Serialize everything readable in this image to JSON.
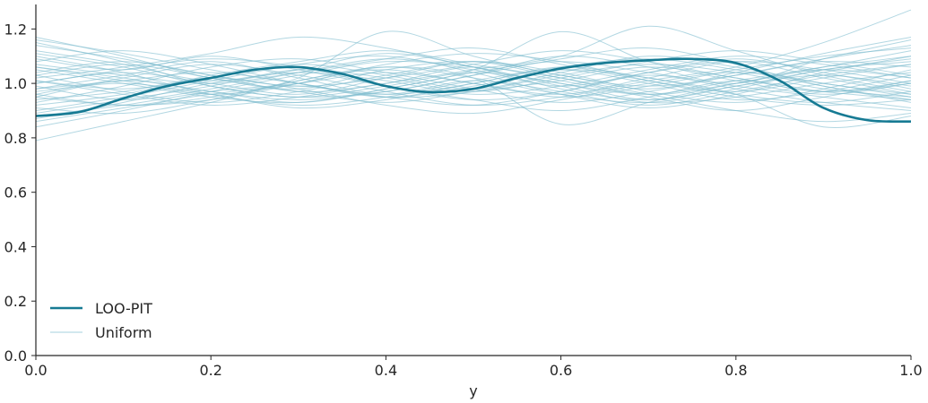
{
  "chart_data": {
    "type": "line",
    "title": "",
    "xlabel": "y",
    "ylabel": "",
    "xlim": [
      0.0,
      1.0
    ],
    "ylim": [
      0.0,
      1.29
    ],
    "xticks": [
      "0.0",
      "0.2",
      "0.4",
      "0.6",
      "0.8",
      "1.0"
    ],
    "yticks": [
      "0.0",
      "0.2",
      "0.4",
      "0.6",
      "0.8",
      "1.0",
      "1.2"
    ],
    "grid": false,
    "legend_position": "lower-left",
    "colors": {
      "loo_pit": "#167a93",
      "uniform": "#7fbccf",
      "axis": "#262626"
    },
    "series": [
      {
        "name": "LOO-PIT",
        "x": [
          0.0,
          0.05,
          0.1,
          0.15,
          0.2,
          0.25,
          0.3,
          0.35,
          0.4,
          0.45,
          0.5,
          0.55,
          0.6,
          0.65,
          0.7,
          0.75,
          0.8,
          0.85,
          0.9,
          0.95,
          1.0
        ],
        "values": [
          0.88,
          0.895,
          0.945,
          0.99,
          1.02,
          1.05,
          1.06,
          1.035,
          0.99,
          0.968,
          0.98,
          1.02,
          1.055,
          1.075,
          1.085,
          1.09,
          1.075,
          1.01,
          0.91,
          0.865,
          0.86
        ]
      },
      {
        "name": "Uniform",
        "x": [
          0.0,
          0.1,
          0.2,
          0.3,
          0.4,
          0.5,
          0.6,
          0.7,
          0.8,
          0.9,
          1.0
        ],
        "samples": [
          [
            1.17,
            1.1,
            1.02,
            0.98,
            1.05,
            1.08,
            1.02,
            0.96,
            1.0,
            1.06,
            1.12
          ],
          [
            1.15,
            1.08,
            0.99,
            0.95,
            0.97,
            1.03,
            1.1,
            1.06,
            1.0,
            1.09,
            1.16
          ],
          [
            0.79,
            0.86,
            0.93,
            1.01,
            1.05,
            1.0,
            0.96,
            1.02,
            1.08,
            1.05,
            1.0
          ],
          [
            0.84,
            0.9,
            0.97,
            1.03,
            1.08,
            1.06,
            0.99,
            0.93,
            0.95,
            1.0,
            1.04
          ],
          [
            1.0,
            1.05,
            1.09,
            1.06,
            0.99,
            0.94,
            0.97,
            1.04,
            1.09,
            1.04,
            0.98
          ],
          [
            0.95,
            0.92,
            0.94,
            1.0,
            1.07,
            1.11,
            1.08,
            1.01,
            0.95,
            0.92,
            0.94
          ],
          [
            1.06,
            1.02,
            0.97,
            0.94,
            0.97,
            1.03,
            1.09,
            1.13,
            1.07,
            0.99,
            0.94
          ],
          [
            0.9,
            0.95,
            1.01,
            1.07,
            1.1,
            1.04,
            0.96,
            0.91,
            0.96,
            1.04,
            1.1
          ],
          [
            1.1,
            1.04,
            0.96,
            0.92,
            0.95,
            1.01,
            1.05,
            1.0,
            0.94,
            0.97,
            1.03
          ],
          [
            0.98,
            1.01,
            1.04,
            1.0,
            0.95,
            0.97,
            1.03,
            1.07,
            1.04,
            0.98,
            0.95
          ],
          [
            1.03,
            0.97,
            0.93,
            0.97,
            1.03,
            1.08,
            1.04,
            0.97,
            0.93,
            0.98,
            1.05
          ],
          [
            0.87,
            0.93,
            1.0,
            1.04,
            1.01,
            0.96,
            0.99,
            1.05,
            1.1,
            1.07,
            1.02
          ],
          [
            1.12,
            1.07,
            1.01,
            1.05,
            1.11,
            1.06,
            0.98,
            0.94,
            0.99,
            1.03,
            0.99
          ],
          [
            0.93,
            0.99,
            1.06,
            1.09,
            1.04,
            0.98,
            0.93,
            0.97,
            1.03,
            1.09,
            1.14
          ],
          [
            1.01,
            0.96,
            0.92,
            0.95,
            1.0,
            1.05,
            1.1,
            1.21,
            1.12,
            1.03,
            0.97
          ],
          [
            0.96,
            1.02,
            1.07,
            1.03,
            0.97,
            0.92,
            0.95,
            1.01,
            1.06,
            1.15,
            1.27
          ],
          [
            1.08,
            1.12,
            1.07,
            1.0,
            0.95,
            0.99,
            1.05,
            1.02,
            0.96,
            0.93,
            0.97
          ],
          [
            0.91,
            0.89,
            0.94,
            1.01,
            1.06,
            1.02,
            0.96,
            0.93,
            0.98,
            1.05,
            1.08
          ],
          [
            1.04,
            1.08,
            1.03,
            0.97,
            1.0,
            1.06,
            1.01,
            0.95,
            0.9,
            0.95,
            1.01
          ],
          [
            0.99,
            0.94,
            0.98,
            1.04,
            1.09,
            1.05,
            0.99,
            1.04,
            1.08,
            1.02,
            0.96
          ],
          [
            1.14,
            1.09,
            1.03,
            0.99,
            1.02,
            1.07,
            1.12,
            1.08,
            1.02,
            0.97,
            1.0
          ],
          [
            0.86,
            0.91,
            0.96,
            0.99,
            0.95,
            0.92,
            0.97,
            1.03,
            0.98,
            0.93,
            0.9
          ],
          [
            1.02,
            1.06,
            1.11,
            1.17,
            1.13,
            1.06,
            1.0,
            0.96,
            1.01,
            1.06,
            1.1
          ],
          [
            0.97,
            1.0,
            0.96,
            0.91,
            0.94,
            1.0,
            1.06,
            1.09,
            1.05,
            0.99,
            0.93
          ],
          [
            1.07,
            1.03,
            1.0,
            1.04,
            1.09,
            1.13,
            1.07,
            1.01,
            0.97,
            1.02,
            1.07
          ],
          [
            0.94,
            0.97,
            1.02,
            0.98,
            0.92,
            0.89,
            0.94,
            1.0,
            1.04,
            1.0,
            0.95
          ],
          [
            1.11,
            1.06,
            0.99,
            0.95,
            0.99,
            1.04,
            1.0,
            0.94,
            0.99,
            1.05,
            1.09
          ],
          [
            0.89,
            0.94,
            0.99,
            1.05,
            1.02,
            0.97,
            1.02,
            1.08,
            1.12,
            1.08,
            1.03
          ],
          [
            1.05,
            1.0,
            0.95,
            0.93,
            0.98,
            1.04,
            1.08,
            1.04,
            0.99,
            0.95,
            0.91
          ],
          [
            1.0,
            1.04,
            1.0,
            0.96,
            1.02,
            1.08,
            1.03,
            0.98,
            1.04,
            1.11,
            1.17
          ],
          [
            0.92,
            0.96,
            1.03,
            1.08,
            1.12,
            1.07,
            1.02,
            0.96,
            0.9,
            0.86,
            0.89
          ],
          [
            1.09,
            1.05,
            1.1,
            1.05,
            0.99,
            0.94,
            0.9,
            0.95,
            1.01,
            0.97,
            0.94
          ],
          [
            0.96,
            0.92,
            0.95,
            1.02,
            1.19,
            1.1,
            1.03,
            0.99,
            1.03,
            1.08,
            1.06
          ],
          [
            1.03,
            1.07,
            1.02,
            0.97,
            0.93,
            0.97,
            1.01,
            1.06,
            1.02,
            0.97,
            1.01
          ],
          [
            0.98,
            1.03,
            1.08,
            1.02,
            0.96,
            1.0,
            1.06,
            1.02,
            0.96,
            0.84,
            0.88
          ],
          [
            1.16,
            1.11,
            1.05,
            1.0,
            0.96,
            1.01,
            0.97,
            0.92,
            0.97,
            1.03,
            1.07
          ],
          [
            0.88,
            0.92,
            0.97,
            1.0,
            1.04,
            1.0,
            0.95,
            0.99,
            1.05,
            1.1,
            1.13
          ],
          [
            1.01,
            0.98,
            1.02,
            1.07,
            1.03,
            0.98,
            1.04,
            1.1,
            1.06,
            1.0,
            0.96
          ],
          [
            0.95,
            1.01,
            0.97,
            0.93,
            0.98,
            1.05,
            1.19,
            1.08,
            1.01,
            0.96,
            1.0
          ],
          [
            1.06,
            1.01,
            0.96,
            1.0,
            1.06,
            1.02,
            0.85,
            0.93,
            1.0,
            1.05,
            1.02
          ]
        ]
      }
    ]
  }
}
